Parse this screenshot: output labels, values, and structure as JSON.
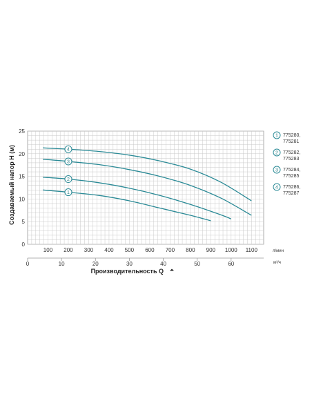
{
  "chart_data": {
    "type": "line",
    "ylabel": "Создаваемый напор Н (м)",
    "xlabel": "Производительность Q",
    "y_ticks": [
      0,
      5,
      10,
      15,
      20,
      25
    ],
    "ylim": [
      0,
      25
    ],
    "xlim_lpm": [
      0,
      1160
    ],
    "x_ticks_lpm": [
      100,
      200,
      300,
      400,
      500,
      600,
      700,
      800,
      900,
      1000,
      1100
    ],
    "x_unit_lpm": "л/мин",
    "x_ticks_m3h": [
      0,
      10,
      20,
      30,
      40,
      50,
      60
    ],
    "x_unit_m3h": "м³/ч",
    "grid": true,
    "line_color": "#2a8a96",
    "series": [
      {
        "name": "1",
        "x": [
          75,
          200,
          350,
          500,
          650,
          800,
          900
        ],
        "y": [
          12.0,
          11.5,
          10.8,
          9.6,
          8.0,
          6.4,
          5.2
        ]
      },
      {
        "name": "2",
        "x": [
          75,
          200,
          350,
          500,
          650,
          800,
          950,
          1000
        ],
        "y": [
          14.8,
          14.4,
          13.6,
          12.4,
          10.8,
          8.8,
          6.5,
          5.6
        ]
      },
      {
        "name": "3",
        "x": [
          75,
          200,
          350,
          500,
          650,
          800,
          950,
          1100
        ],
        "y": [
          18.8,
          18.3,
          17.6,
          16.5,
          15.0,
          13.0,
          10.2,
          6.4
        ]
      },
      {
        "name": "4",
        "x": [
          75,
          200,
          350,
          500,
          650,
          800,
          950,
          1100
        ],
        "y": [
          21.3,
          21.0,
          20.5,
          19.7,
          18.4,
          16.6,
          13.7,
          9.6
        ]
      }
    ],
    "legend": [
      {
        "marker": "1",
        "lines": [
          "775280,",
          "775281"
        ]
      },
      {
        "marker": "2",
        "lines": [
          "775282,",
          "775283"
        ]
      },
      {
        "marker": "3",
        "lines": [
          "775284,",
          "775285"
        ]
      },
      {
        "marker": "4",
        "lines": [
          "775286,",
          "775287"
        ]
      }
    ],
    "legend_placement": "right"
  }
}
